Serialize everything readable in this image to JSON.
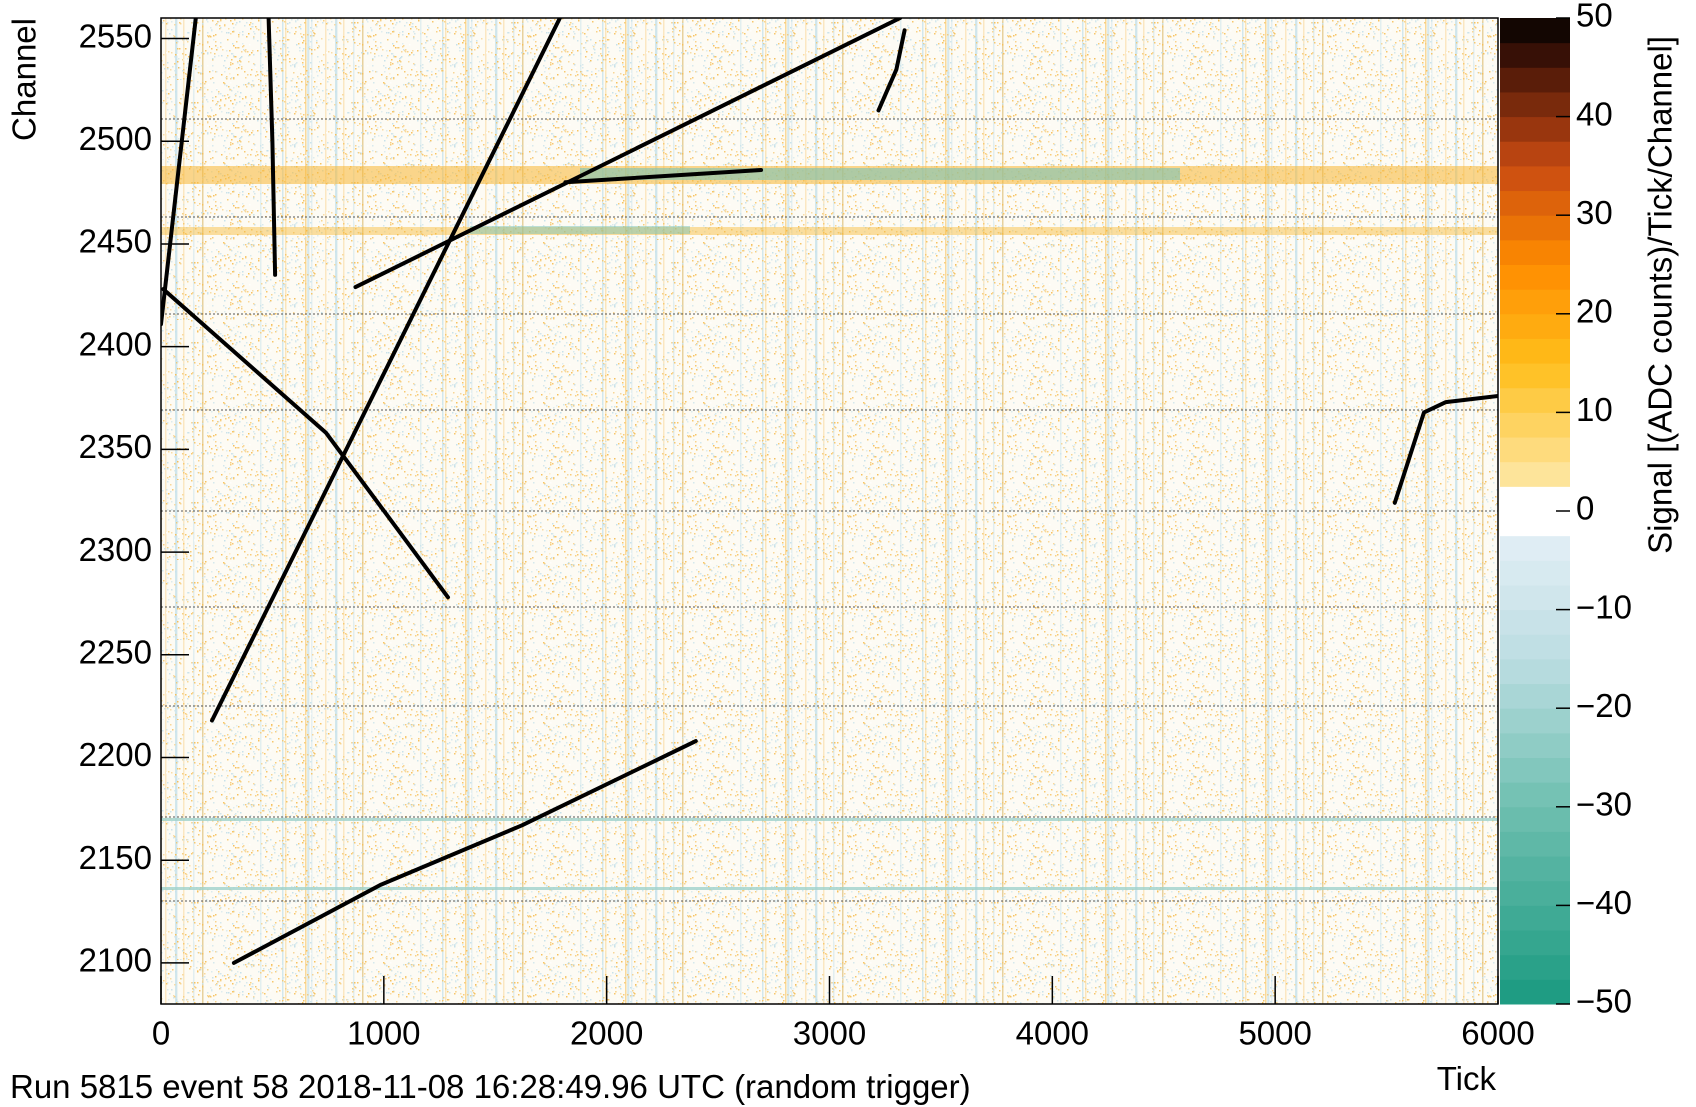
{
  "chart_data": {
    "type": "heatmap",
    "footer": "Run 5815 event 58 2018-11-08 16:28:49.96 UTC (random trigger)",
    "x_label": "Tick",
    "y_label": "Channel",
    "z_label": "Signal [(ADC counts)/Tick/Channel]",
    "xlim": [
      0,
      6000
    ],
    "xticks": [
      0,
      1000,
      2000,
      3000,
      4000,
      5000,
      6000
    ],
    "ylim": [
      2080,
      2560
    ],
    "yticks": [
      2100,
      2150,
      2200,
      2250,
      2300,
      2350,
      2400,
      2450,
      2500,
      2550
    ],
    "zlim": [
      -50,
      50
    ],
    "zticks": [
      {
        "value": -50,
        "label": "−50"
      },
      {
        "value": -40,
        "label": "−40"
      },
      {
        "value": -30,
        "label": "−30"
      },
      {
        "value": -20,
        "label": "−20"
      },
      {
        "value": -10,
        "label": "−10"
      },
      0,
      10,
      20,
      30,
      40,
      50
    ],
    "track_color": "#000000",
    "series": [
      {
        "x": [
          0,
          156
        ],
        "values": [
          2411,
          2560
        ]
      },
      {
        "x": [
          483,
          500,
          512
        ],
        "values": [
          2560,
          2500,
          2435
        ]
      },
      {
        "x": [
          10,
          741,
          1288
        ],
        "values": [
          2428,
          2358,
          2278
        ]
      },
      {
        "x": [
          229,
          1302,
          1790
        ],
        "values": [
          2218,
          2453,
          2560
        ]
      },
      {
        "x": [
          873,
          1937,
          3317
        ],
        "values": [
          2429,
          2486,
          2560
        ]
      },
      {
        "x": [
          1815,
          2693
        ],
        "values": [
          2480,
          2486
        ]
      },
      {
        "x": [
          3220,
          3300,
          3337
        ],
        "values": [
          2515,
          2535,
          2554
        ]
      },
      {
        "x": [
          327,
          985,
          1620,
          2400
        ],
        "values": [
          2100,
          2138,
          2167,
          2208
        ]
      },
      {
        "x": [
          5537,
          5668,
          5766,
          6000
        ],
        "values": [
          2324,
          2368,
          2373,
          2376
        ]
      }
    ]
  }
}
